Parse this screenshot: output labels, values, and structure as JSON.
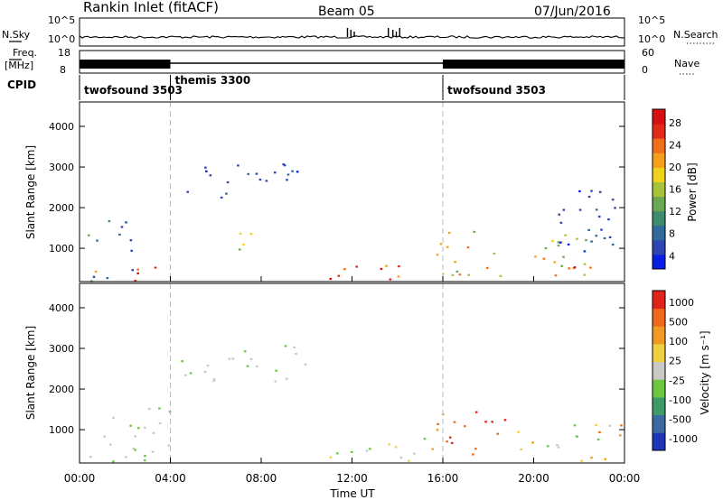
{
  "header": {
    "title": "Rankin Inlet (fitACF)",
    "beam": "Beam 05",
    "date": "07/Jun/2016"
  },
  "strip_labels": {
    "nsky": "N.Sky",
    "nsky_ticks": [
      "10^5",
      "10^0"
    ],
    "nsearch_ticks": [
      "10^5",
      "10^0"
    ],
    "nsearch": "N.Search",
    "freq": "Freq.",
    "freq_unit": "[MHz]",
    "freq_ticks": [
      "18",
      "8"
    ],
    "nave_ticks": [
      "60",
      "0"
    ],
    "nave": "Nave",
    "cpid": "CPID"
  },
  "cpid_segments": [
    {
      "label": "twofsound 3503",
      "start_h": 0,
      "end_h": 4
    },
    {
      "label": "themis 3300",
      "start_h": 4,
      "end_h": 16
    },
    {
      "label": "twofsound 3503",
      "start_h": 16,
      "end_h": 24
    }
  ],
  "chart_data": [
    {
      "type": "heatmap",
      "name": "power",
      "xlabel": "",
      "ylabel": "Slant Range [km]",
      "xlim": [
        0,
        24
      ],
      "ylim": [
        180,
        4600
      ],
      "yticks": [
        1000,
        2000,
        3000,
        4000
      ],
      "colorbar": {
        "label": "Power [dB]",
        "ticks": [
          "28",
          "24",
          "20",
          "16",
          "12",
          "8",
          "4"
        ]
      },
      "regions": [
        {
          "t0": 0.3,
          "t1": 2.4,
          "r0": 200,
          "r1": 1700,
          "level": "low-mid"
        },
        {
          "t0": 0.5,
          "t1": 1.3,
          "r0": 220,
          "r1": 600,
          "level": "high"
        },
        {
          "t0": 2.4,
          "t1": 4.0,
          "r0": 220,
          "r1": 900,
          "level": "high"
        },
        {
          "t0": 4.2,
          "t1": 9.8,
          "r0": 2200,
          "r1": 3100,
          "level": "low"
        },
        {
          "t0": 7.0,
          "t1": 8.5,
          "r0": 900,
          "r1": 1600,
          "level": "mid"
        },
        {
          "t0": 10.5,
          "t1": 15.5,
          "r0": 250,
          "r1": 700,
          "level": "high"
        },
        {
          "t0": 15.5,
          "t1": 22.5,
          "r0": 300,
          "r1": 1500,
          "level": "mid-high"
        },
        {
          "t0": 20.0,
          "t1": 22.0,
          "r0": 250,
          "r1": 600,
          "level": "high"
        },
        {
          "t0": 21.0,
          "t1": 24.0,
          "r0": 700,
          "r1": 2700,
          "level": "low"
        }
      ]
    },
    {
      "type": "heatmap",
      "name": "velocity",
      "xlabel": "Time UT",
      "ylabel": "Slant Range [km]",
      "xlim": [
        0,
        24
      ],
      "ylim": [
        180,
        4600
      ],
      "xticks": [
        "00:00",
        "04:00",
        "08:00",
        "12:00",
        "16:00",
        "20:00",
        "00:00"
      ],
      "yticks": [
        1000,
        2000,
        3000,
        4000
      ],
      "colorbar": {
        "label": "Velocity [m s⁻¹]",
        "ticks": [
          "1000",
          "500",
          "100",
          "25",
          "-25",
          "-100",
          "-500",
          "-1000"
        ]
      },
      "regions": [
        {
          "t0": 0.3,
          "t1": 4.0,
          "r0": 200,
          "r1": 1700,
          "level": "ground"
        },
        {
          "t0": 4.2,
          "t1": 10.0,
          "r0": 2200,
          "r1": 3100,
          "level": "ground"
        },
        {
          "t0": 10.5,
          "t1": 15.5,
          "r0": 250,
          "r1": 800,
          "level": "away"
        },
        {
          "t0": 15.5,
          "t1": 19.0,
          "r0": 400,
          "r1": 1600,
          "level": "strong-away"
        },
        {
          "t0": 19.0,
          "t1": 24.0,
          "r0": 250,
          "r1": 1200,
          "level": "mixed"
        }
      ]
    }
  ],
  "colors": {
    "power_scale": [
      "#0a1ee6",
      "#2e44b0",
      "#2f6a9a",
      "#3e8b6e",
      "#6aa852",
      "#a8c23a",
      "#f0d21e",
      "#f5a01c",
      "#f0701a",
      "#e22a18",
      "#d60f10"
    ],
    "velocity_scale": [
      "#2035b5",
      "#3a6aa0",
      "#3f9a6a",
      "#6cc640",
      "#c8c8c4",
      "#f0d040",
      "#f09a22",
      "#ee6a1a",
      "#e0241a"
    ]
  }
}
